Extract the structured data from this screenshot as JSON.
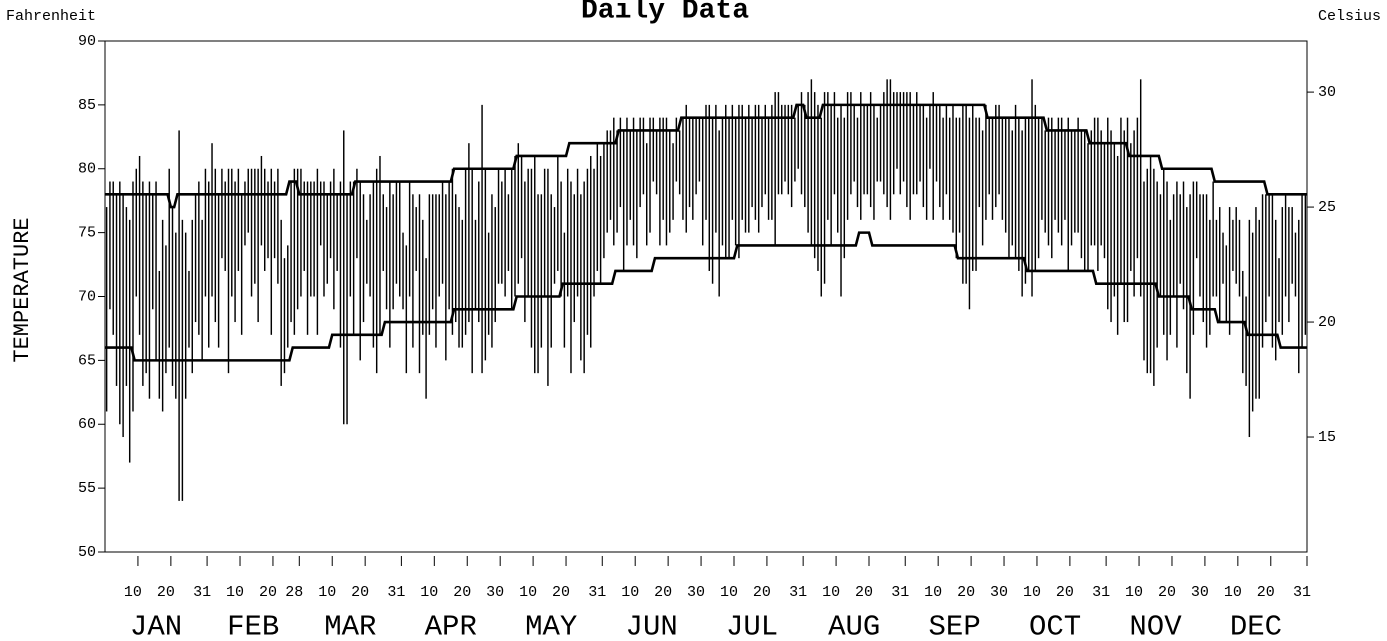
{
  "chart_data": {
    "type": "range-bar",
    "title": "Daily Data",
    "left_axis_title": "Fahrenheit",
    "right_axis_title": "Celsius",
    "y_label": "TEMPERATURE",
    "color": "#000000",
    "xlim": [
      0,
      365
    ],
    "ylim": [
      50,
      90
    ],
    "yticks": [
      50,
      55,
      60,
      65,
      70,
      75,
      80,
      85,
      90
    ],
    "y2lim": [
      10,
      32.2222
    ],
    "y2ticks": [
      15,
      20,
      25,
      30
    ],
    "xticks": [
      {
        "value": 10,
        "label": "10"
      },
      {
        "value": 20,
        "label": "20"
      },
      {
        "value": 31,
        "label": "31"
      },
      {
        "value": 41,
        "label": "10"
      },
      {
        "value": 51,
        "label": "20"
      },
      {
        "value": 59,
        "label": "28"
      },
      {
        "value": 69,
        "label": "10"
      },
      {
        "value": 79,
        "label": "20"
      },
      {
        "value": 90,
        "label": "31"
      },
      {
        "value": 100,
        "label": "10"
      },
      {
        "value": 110,
        "label": "20"
      },
      {
        "value": 120,
        "label": "30"
      },
      {
        "value": 130,
        "label": "10"
      },
      {
        "value": 140,
        "label": "20"
      },
      {
        "value": 151,
        "label": "31"
      },
      {
        "value": 161,
        "label": "10"
      },
      {
        "value": 171,
        "label": "20"
      },
      {
        "value": 181,
        "label": "30"
      },
      {
        "value": 191,
        "label": "10"
      },
      {
        "value": 201,
        "label": "20"
      },
      {
        "value": 212,
        "label": "31"
      },
      {
        "value": 222,
        "label": "10"
      },
      {
        "value": 232,
        "label": "20"
      },
      {
        "value": 243,
        "label": "31"
      },
      {
        "value": 253,
        "label": "10"
      },
      {
        "value": 263,
        "label": "20"
      },
      {
        "value": 273,
        "label": "30"
      },
      {
        "value": 283,
        "label": "10"
      },
      {
        "value": 293,
        "label": "20"
      },
      {
        "value": 304,
        "label": "31"
      },
      {
        "value": 314,
        "label": "10"
      },
      {
        "value": 324,
        "label": "20"
      },
      {
        "value": 334,
        "label": "30"
      },
      {
        "value": 344,
        "label": "10"
      },
      {
        "value": 354,
        "label": "20"
      },
      {
        "value": 365,
        "label": "31"
      }
    ],
    "month_ticks": [
      {
        "value": 15.5,
        "label": "JAN"
      },
      {
        "value": 45,
        "label": "FEB"
      },
      {
        "value": 74.5,
        "label": "MAR"
      },
      {
        "value": 105,
        "label": "APR"
      },
      {
        "value": 135.5,
        "label": "MAY"
      },
      {
        "value": 166,
        "label": "JUN"
      },
      {
        "value": 196.5,
        "label": "JUL"
      },
      {
        "value": 227.5,
        "label": "AUG"
      },
      {
        "value": 258,
        "label": "SEP"
      },
      {
        "value": 288.5,
        "label": "OCT"
      },
      {
        "value": 319,
        "label": "NOV"
      },
      {
        "value": 349.5,
        "label": "DEC"
      }
    ],
    "highs": [
      77,
      79,
      79,
      78,
      79,
      78,
      77,
      76,
      79,
      80,
      81,
      79,
      78,
      79,
      78,
      79,
      72,
      76,
      74,
      80,
      77,
      75,
      83,
      76,
      75,
      72,
      76,
      78,
      79,
      76,
      80,
      79,
      82,
      80,
      78,
      80,
      79,
      80,
      80,
      79,
      80,
      78,
      79,
      80,
      80,
      80,
      80,
      81,
      80,
      79,
      80,
      79,
      80,
      76,
      73,
      74,
      79,
      80,
      80,
      80,
      79,
      79,
      79,
      79,
      80,
      79,
      79,
      78,
      79,
      80,
      78,
      79,
      83,
      78,
      79,
      79,
      80,
      79,
      78,
      76,
      78,
      79,
      80,
      81,
      78,
      77,
      79,
      78,
      79,
      79,
      75,
      74,
      79,
      78,
      77,
      78,
      76,
      73,
      78,
      78,
      78,
      78,
      79,
      78,
      79,
      80,
      78,
      77,
      76,
      80,
      82,
      80,
      76,
      79,
      85,
      80,
      75,
      78,
      77,
      80,
      79,
      80,
      78,
      80,
      81,
      82,
      81,
      79,
      80,
      80,
      81,
      78,
      78,
      80,
      80,
      78,
      77,
      81,
      79,
      75,
      80,
      79,
      78,
      80,
      78,
      79,
      80,
      81,
      80,
      82,
      81,
      82,
      83,
      83,
      84,
      83,
      84,
      83,
      84,
      83,
      84,
      83,
      84,
      84,
      82,
      84,
      84,
      83,
      84,
      84,
      84,
      83,
      82,
      84,
      83,
      84,
      85,
      84,
      84,
      84,
      84,
      84,
      85,
      85,
      84,
      85,
      83,
      84,
      85,
      84,
      85,
      84,
      85,
      85,
      84,
      85,
      84,
      85,
      85,
      84,
      85,
      84,
      85,
      86,
      86,
      85,
      85,
      85,
      85,
      84,
      85,
      86,
      85,
      86,
      87,
      86,
      85,
      84,
      86,
      86,
      85,
      86,
      84,
      85,
      84,
      86,
      86,
      85,
      84,
      86,
      85,
      85,
      86,
      85,
      84,
      85,
      86,
      87,
      87,
      86,
      86,
      86,
      86,
      86,
      86,
      85,
      86,
      85,
      85,
      84,
      85,
      86,
      85,
      85,
      84,
      85,
      84,
      85,
      84,
      84,
      85,
      85,
      84,
      85,
      84,
      84,
      83,
      85,
      84,
      84,
      85,
      85,
      84,
      84,
      84,
      83,
      85,
      84,
      83,
      84,
      84,
      87,
      85,
      84,
      84,
      83,
      84,
      84,
      83,
      84,
      84,
      83,
      84,
      83,
      83,
      84,
      83,
      83,
      82,
      83,
      84,
      84,
      83,
      82,
      84,
      83,
      82,
      81,
      84,
      83,
      84,
      82,
      83,
      84,
      87,
      79,
      80,
      81,
      80,
      79,
      78,
      80,
      79,
      76,
      78,
      79,
      78,
      79,
      77,
      78,
      79,
      79,
      78,
      78,
      78,
      76,
      79,
      76,
      77,
      75,
      74,
      77,
      76,
      77,
      76,
      72,
      70,
      76,
      75,
      77,
      76,
      78,
      78,
      78,
      78,
      76,
      73,
      77,
      78,
      77,
      77,
      75,
      76,
      78,
      78
    ],
    "lows": [
      61,
      69,
      67,
      63,
      60,
      59,
      63,
      57,
      61,
      70,
      67,
      63,
      64,
      62,
      69,
      65,
      62,
      61,
      64,
      66,
      63,
      62,
      54,
      54,
      62,
      66,
      64,
      68,
      67,
      65,
      70,
      66,
      70,
      68,
      66,
      73,
      72,
      64,
      70,
      68,
      72,
      67,
      74,
      75,
      70,
      71,
      68,
      74,
      72,
      73,
      67,
      73,
      71,
      63,
      64,
      66,
      68,
      67,
      69,
      70,
      72,
      67,
      70,
      70,
      67,
      74,
      70,
      71,
      73,
      69,
      72,
      66,
      60,
      60,
      70,
      67,
      73,
      65,
      68,
      71,
      70,
      66,
      64,
      67,
      72,
      69,
      66,
      69,
      71,
      70,
      69,
      64,
      70,
      66,
      72,
      64,
      67,
      62,
      67,
      69,
      66,
      70,
      71,
      65,
      69,
      67,
      68,
      66,
      66,
      67,
      68,
      64,
      69,
      68,
      64,
      65,
      67,
      66,
      68,
      71,
      71,
      70,
      72,
      69,
      70,
      71,
      73,
      68,
      70,
      66,
      64,
      64,
      66,
      70,
      63,
      66,
      71,
      72,
      70,
      66,
      70,
      64,
      68,
      70,
      65,
      64,
      67,
      66,
      70,
      72,
      71,
      73,
      75,
      76,
      74,
      75,
      77,
      72,
      74,
      76,
      74,
      73,
      77,
      78,
      74,
      75,
      79,
      78,
      74,
      76,
      74,
      75,
      76,
      79,
      78,
      76,
      75,
      77,
      76,
      78,
      79,
      74,
      76,
      72,
      71,
      75,
      70,
      74,
      73,
      73,
      76,
      74,
      73,
      76,
      75,
      75,
      77,
      76,
      75,
      77,
      78,
      76,
      76,
      74,
      78,
      78,
      79,
      78,
      77,
      79,
      80,
      78,
      77,
      75,
      74,
      73,
      72,
      70,
      71,
      76,
      74,
      78,
      75,
      70,
      73,
      76,
      78,
      79,
      77,
      76,
      78,
      78,
      77,
      76,
      79,
      79,
      78,
      77,
      76,
      78,
      80,
      78,
      79,
      77,
      76,
      78,
      78,
      79,
      77,
      76,
      80,
      76,
      79,
      77,
      76,
      78,
      76,
      75,
      73,
      75,
      71,
      71,
      69,
      72,
      72,
      77,
      74,
      76,
      78,
      76,
      77,
      78,
      76,
      75,
      73,
      74,
      73,
      72,
      70,
      71,
      72,
      70,
      72,
      73,
      76,
      75,
      74,
      73,
      76,
      75,
      74,
      76,
      72,
      74,
      75,
      75,
      73,
      72,
      72,
      74,
      74,
      72,
      74,
      73,
      69,
      68,
      70,
      67,
      71,
      68,
      68,
      72,
      70,
      73,
      70,
      65,
      64,
      64,
      63,
      66,
      70,
      67,
      65,
      67,
      70,
      66,
      71,
      69,
      64,
      62,
      67,
      73,
      70,
      68,
      66,
      67,
      70,
      70,
      68,
      71,
      68,
      67,
      72,
      71,
      70,
      64,
      63,
      59,
      61,
      62,
      62,
      66,
      68,
      70,
      66,
      65,
      68,
      67,
      70,
      68,
      71,
      70,
      64,
      66,
      67
    ],
    "lines": [
      {
        "color": "#000000",
        "x": [
          0,
          19,
          20,
          21,
          22,
          55,
          56,
          58,
          59,
          75,
          76,
          105,
          106,
          124,
          125,
          140,
          141,
          155,
          156,
          174,
          175,
          209,
          210,
          212,
          213,
          217,
          218,
          267,
          268,
          285,
          286,
          298,
          299,
          310,
          311,
          320,
          321,
          336,
          337,
          352,
          353,
          365
        ],
        "values": [
          78,
          78,
          77,
          77,
          78,
          78,
          79,
          79,
          78,
          78,
          79,
          79,
          80,
          80,
          81,
          81,
          82,
          82,
          83,
          83,
          84,
          84,
          85,
          85,
          84,
          84,
          85,
          85,
          84,
          84,
          83,
          83,
          82,
          82,
          81,
          81,
          80,
          80,
          79,
          79,
          78,
          78
        ]
      },
      {
        "color": "#000000",
        "x": [
          0,
          8,
          9,
          56,
          57,
          68,
          69,
          84,
          85,
          105,
          106,
          124,
          125,
          138,
          139,
          154,
          155,
          166,
          167,
          191,
          192,
          228,
          229,
          232,
          233,
          258,
          259,
          279,
          280,
          300,
          301,
          319,
          320,
          329,
          330,
          337,
          338,
          346,
          347,
          356,
          357,
          365
        ],
        "values": [
          66,
          66,
          65,
          65,
          66,
          66,
          67,
          67,
          68,
          68,
          69,
          69,
          70,
          70,
          71,
          71,
          72,
          72,
          73,
          73,
          74,
          74,
          75,
          75,
          74,
          74,
          73,
          73,
          72,
          72,
          71,
          71,
          70,
          70,
          69,
          69,
          68,
          68,
          67,
          67,
          66,
          66
        ]
      }
    ]
  }
}
